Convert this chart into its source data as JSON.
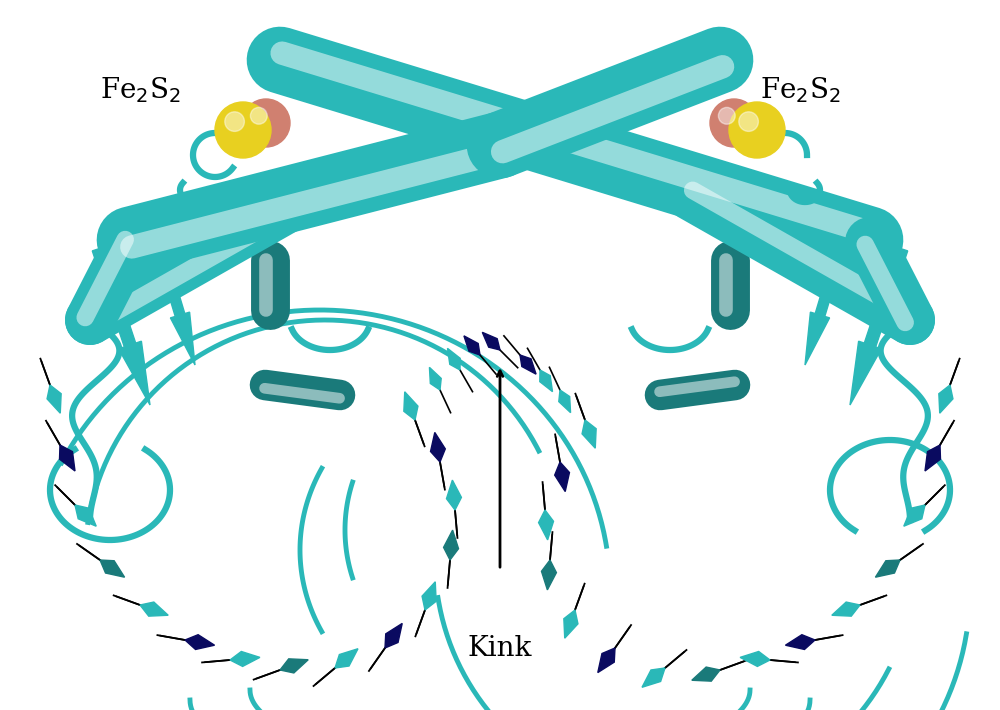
{
  "background_color": "#ffffff",
  "teal": "#2ab8b8",
  "teal_dark": "#1a7a7a",
  "teal_mid": "#1e9090",
  "teal_light": "#50d0d0",
  "yellow": "#e8d020",
  "pink": "#d08070",
  "navy": "#0a0a60",
  "black": "#000000",
  "label_fontsize": 20,
  "kink_fontsize": 20
}
